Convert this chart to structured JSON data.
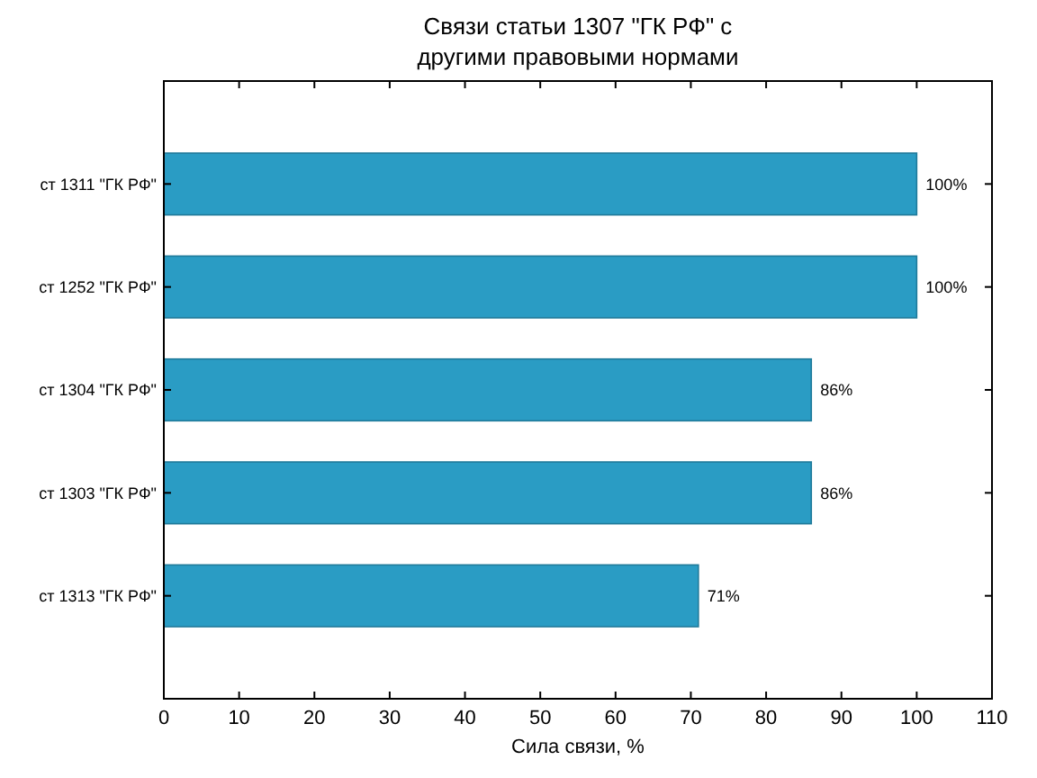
{
  "chart_data": {
    "type": "bar",
    "orientation": "horizontal",
    "title": "Связи статьи 1307 \"ГК РФ\" с\nдругими правовыми нормами",
    "xlabel": "Сила связи, %",
    "categories": [
      "ст 1311 \"ГК РФ\"",
      "ст 1252 \"ГК РФ\"",
      "ст 1304 \"ГК РФ\"",
      "ст 1303 \"ГК РФ\"",
      "ст 1313 \"ГК РФ\""
    ],
    "values": [
      100,
      100,
      86,
      86,
      71
    ],
    "value_labels": [
      "100%",
      "100%",
      "86%",
      "86%",
      "71%"
    ],
    "color": "#2a9cc4",
    "xlim": [
      0,
      110
    ],
    "xticks": [
      0,
      10,
      20,
      30,
      40,
      50,
      60,
      70,
      80,
      90,
      100,
      110
    ],
    "grid": false
  }
}
